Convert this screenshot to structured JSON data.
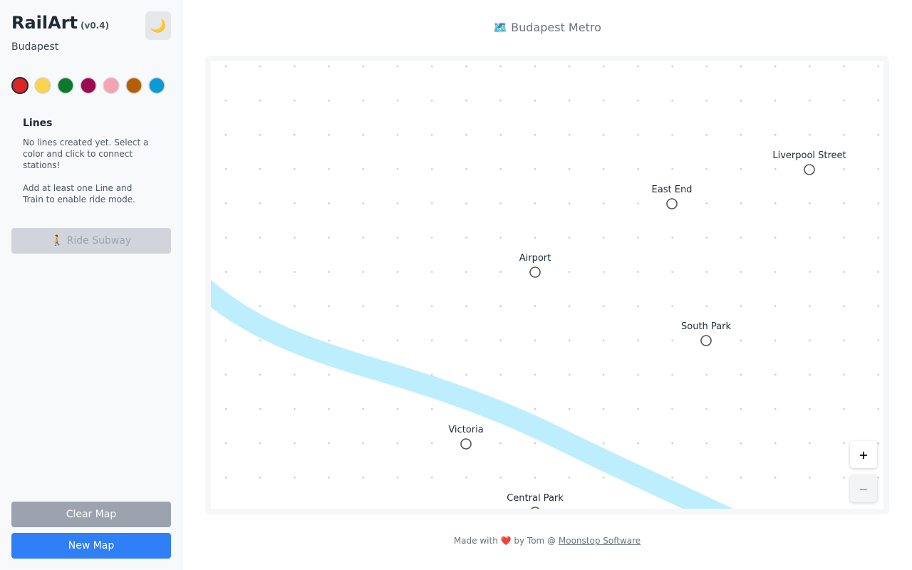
{
  "sidebar": {
    "app_name": "RailArt",
    "version": "(v0.4)",
    "city": "Budapest",
    "theme_icon": "🌙",
    "palette": [
      "#dc2626",
      "#fcd34d",
      "#0b7a2e",
      "#9b0b52",
      "#f4a3b2",
      "#b45f06",
      "#0b9ad6"
    ],
    "lines": {
      "heading": "Lines",
      "empty_text": "No lines created yet. Select a color and click to connect stations!",
      "hint": "Add at least one Line and Train to enable ride mode."
    },
    "ride_button": "🚶 Ride Subway",
    "clear_button": "Clear Map",
    "new_button": "New Map"
  },
  "map": {
    "title": "🗺️ Budapest Metro",
    "stations": [
      {
        "label": "Liverpool Street"
      },
      {
        "label": "East End"
      },
      {
        "label": "Airport"
      },
      {
        "label": "South Park"
      },
      {
        "label": "Victoria"
      },
      {
        "label": "Central Park"
      }
    ],
    "zoom_in": "+",
    "zoom_out": "−"
  },
  "footer": {
    "text": "Made with ❤️ by Tom @",
    "link": "Moonstop Software"
  }
}
